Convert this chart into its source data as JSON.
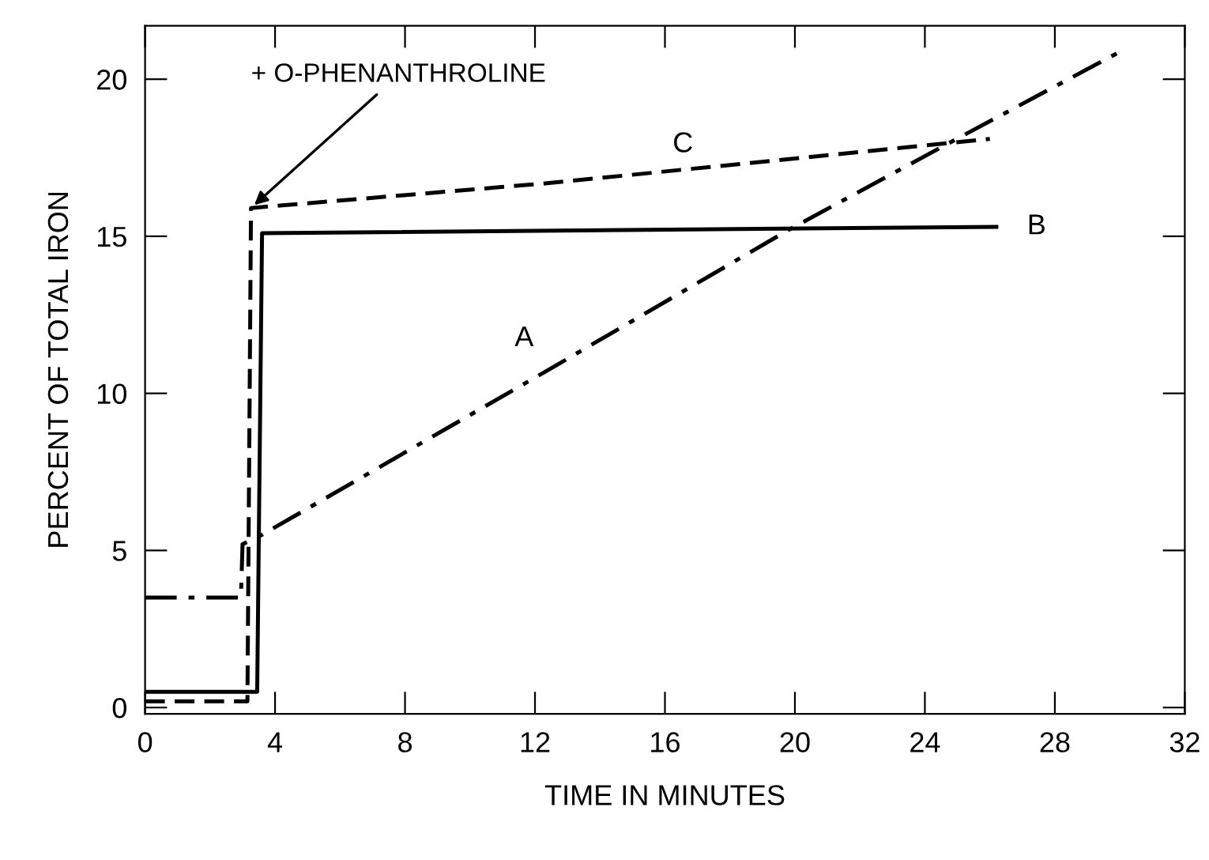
{
  "chart_data": {
    "type": "line",
    "xlabel": "TIME IN MINUTES",
    "ylabel": "PERCENT OF TOTAL IRON",
    "xlim": [
      0,
      32
    ],
    "ylim": [
      -0.2,
      21.7
    ],
    "xticks": [
      0,
      4,
      8,
      12,
      16,
      20,
      24,
      28,
      32
    ],
    "yticks": [
      0,
      5,
      10,
      15,
      20
    ],
    "grid": false,
    "legend": false,
    "marker": "none",
    "series": [
      {
        "name": "A",
        "color": "#000000",
        "line_style": "dashdot",
        "x": [
          0,
          2.95,
          3.0,
          3.6,
          12.5,
          19.8,
          24.8,
          30.05
        ],
        "values": [
          3.5,
          3.5,
          5.2,
          5.5,
          10.8,
          15.2,
          18.0,
          20.9
        ]
      },
      {
        "name": "B",
        "color": "#000000",
        "line_style": "solid",
        "x": [
          0,
          3.45,
          3.6,
          26.2
        ],
        "values": [
          0.5,
          0.5,
          15.1,
          15.3
        ]
      },
      {
        "name": "C",
        "color": "#000000",
        "line_style": "dashed",
        "x": [
          0,
          3.15,
          3.26,
          12.5,
          26.0
        ],
        "values": [
          0.2,
          0.2,
          15.9,
          16.7,
          18.1
        ]
      }
    ],
    "annotations": [
      {
        "text": "+ O-PHENANTHROLINE",
        "x": 3.26,
        "y": 15.9
      }
    ]
  }
}
